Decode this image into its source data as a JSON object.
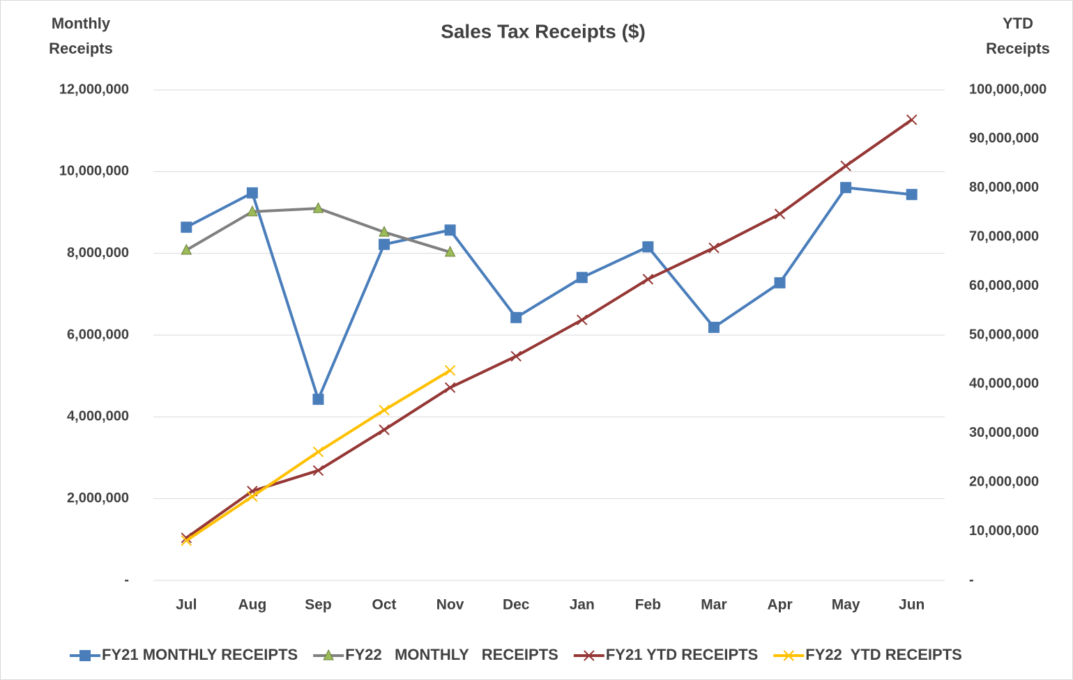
{
  "chart_data": {
    "type": "line",
    "title": "Sales Tax Receipts ($)",
    "y_label": "Monthly Receipts",
    "y2_label": "YTD Receipts",
    "categories": [
      "Jul",
      "Aug",
      "Sep",
      "Oct",
      "Nov",
      "Dec",
      "Jan",
      "Feb",
      "Mar",
      "Apr",
      "May",
      "Jun"
    ],
    "ylim": [
      0,
      12000000
    ],
    "yticks": [
      {
        "value": 0,
        "label": "-"
      },
      {
        "value": 2000000,
        "label": "2,000,000"
      },
      {
        "value": 4000000,
        "label": "4,000,000"
      },
      {
        "value": 6000000,
        "label": "6,000,000"
      },
      {
        "value": 8000000,
        "label": "8,000,000"
      },
      {
        "value": 10000000,
        "label": "10,000,000"
      },
      {
        "value": 12000000,
        "label": "12,000,000"
      }
    ],
    "y2lim": [
      0,
      100000000
    ],
    "y2ticks": [
      {
        "value": 0,
        "label": "-"
      },
      {
        "value": 10000000,
        "label": "10,000,000"
      },
      {
        "value": 20000000,
        "label": "20,000,000"
      },
      {
        "value": 30000000,
        "label": "30,000,000"
      },
      {
        "value": 40000000,
        "label": "40,000,000"
      },
      {
        "value": 50000000,
        "label": "50,000,000"
      },
      {
        "value": 60000000,
        "label": "60,000,000"
      },
      {
        "value": 70000000,
        "label": "70,000,000"
      },
      {
        "value": 80000000,
        "label": "80,000,000"
      },
      {
        "value": 90000000,
        "label": "90,000,000"
      },
      {
        "value": 100000000,
        "label": "100,000,000"
      }
    ],
    "grid": true,
    "legend": "bottom",
    "series": [
      {
        "name": "FY21 MONTHLY RECEIPTS",
        "color": "#4a7ebb",
        "marker": "square",
        "values": [
          8640000,
          9480000,
          4430000,
          8220000,
          8570000,
          6430000,
          7410000,
          8160000,
          6190000,
          7280000,
          9610000,
          9440000
        ]
      },
      {
        "name": "FY22   MONTHLY   RECEIPTS",
        "color": "#808080",
        "marker": "triangle",
        "marker_color": "#9bbb59",
        "values": [
          8080000,
          9020000,
          9100000,
          8520000,
          8030000,
          null,
          null,
          null,
          null,
          null,
          null,
          null
        ]
      },
      {
        "name": "FY21 YTD RECEIPTS",
        "color": "#953735",
        "marker": "x",
        "axis": "y2",
        "values": [
          8660000,
          18200000,
          22400000,
          30700000,
          39300000,
          45700000,
          53100000,
          61400000,
          67800000,
          74700000,
          84500000,
          93900000
        ]
      },
      {
        "name": "FY22  YTD RECEIPTS",
        "color": "#ffc000",
        "marker": "x",
        "axis": "y2",
        "values": [
          8100000,
          17100000,
          26200000,
          34700000,
          42800000,
          null,
          null,
          null,
          null,
          null,
          null,
          null
        ]
      }
    ]
  }
}
